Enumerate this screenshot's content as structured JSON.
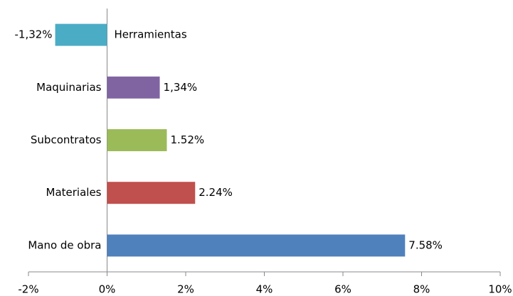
{
  "chart_data": {
    "type": "barh",
    "categories": [
      "Herramientas",
      "Maquinarias",
      "Subcontratos",
      "Materiales",
      "Mano de obra"
    ],
    "values": [
      -1.32,
      1.34,
      1.52,
      2.24,
      7.58
    ],
    "value_labels": [
      "-1,32%",
      "1,34%",
      "1.52%",
      "2.24%",
      "7.58%"
    ],
    "colors": [
      "#4bacc6",
      "#8064a2",
      "#9bbb59",
      "#c0504d",
      "#4f81bd"
    ],
    "xlim": [
      -2,
      10
    ],
    "xticks": [
      {
        "value": -2,
        "label": "-2%"
      },
      {
        "value": 0,
        "label": "0%"
      },
      {
        "value": 2,
        "label": "2%"
      },
      {
        "value": 4,
        "label": "4%"
      },
      {
        "value": 6,
        "label": "6%"
      },
      {
        "value": 8,
        "label": "8%"
      },
      {
        "value": 10,
        "label": "10%"
      }
    ]
  }
}
